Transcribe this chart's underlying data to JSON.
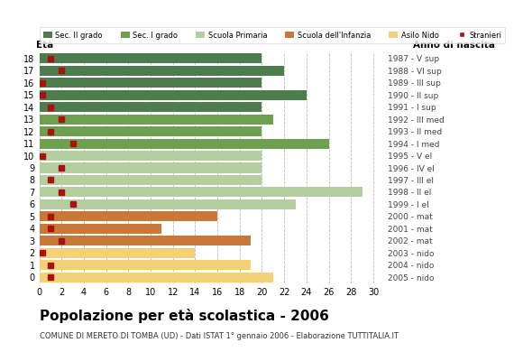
{
  "ages": [
    18,
    17,
    16,
    15,
    14,
    13,
    12,
    11,
    10,
    9,
    8,
    7,
    6,
    5,
    4,
    3,
    2,
    1,
    0
  ],
  "right_labels": [
    "1987 - V sup",
    "1988 - VI sup",
    "1989 - III sup",
    "1990 - II sup",
    "1991 - I sup",
    "1992 - III med",
    "1993 - II med",
    "1994 - I med",
    "1995 - V el",
    "1996 - IV el",
    "1997 - III el",
    "1998 - II el",
    "1999 - I el",
    "2000 - mat",
    "2001 - mat",
    "2002 - mat",
    "2003 - nido",
    "2004 - nido",
    "2005 - nido"
  ],
  "bar_values": [
    20,
    22,
    20,
    24,
    20,
    21,
    20,
    26,
    20,
    20,
    20,
    29,
    23,
    16,
    11,
    19,
    14,
    19,
    21
  ],
  "stranieri": [
    1,
    2,
    0.3,
    0.3,
    1,
    2,
    1,
    3,
    0.3,
    2,
    1,
    2,
    3,
    1,
    1,
    2,
    0.3,
    1,
    1
  ],
  "bar_colors": [
    "#4d7c4d",
    "#4d7c4d",
    "#4d7c4d",
    "#4d7c4d",
    "#4d7c4d",
    "#6ea050",
    "#6ea050",
    "#6ea050",
    "#b5ceA0",
    "#b5ceA0",
    "#b5ceA0",
    "#b5ceA0",
    "#b5ceA0",
    "#c8793a",
    "#c8793a",
    "#c8793a",
    "#f5d07a",
    "#f5d07a",
    "#f5d07a"
  ],
  "legend_labels": [
    "Sec. II grado",
    "Sec. I grado",
    "Scuola Primaria",
    "Scuola dell'Infanzia",
    "Asilo Nido",
    "Stranieri"
  ],
  "legend_colors": [
    "#4d7c4d",
    "#6ea050",
    "#b5ceA0",
    "#c8793a",
    "#f5d07a",
    "#aa1111"
  ],
  "title": "Popolazione per età scolastica - 2006",
  "subtitle": "COMUNE DI MERETO DI TOMBA (UD) - Dati ISTAT 1° gennaio 2006 - Elaborazione TUTTITALIA.IT",
  "xlabel_eta": "Età",
  "xlabel_anno": "Anno di nascita",
  "xlim": [
    0,
    31
  ],
  "xticks": [
    0,
    2,
    4,
    6,
    8,
    10,
    12,
    14,
    16,
    18,
    20,
    22,
    24,
    26,
    28,
    30
  ],
  "bar_height": 0.82,
  "stranieri_color": "#aa1111",
  "stranieri_size": 4,
  "grid_color": "#bbbbbb",
  "bg_color": "#ffffff"
}
